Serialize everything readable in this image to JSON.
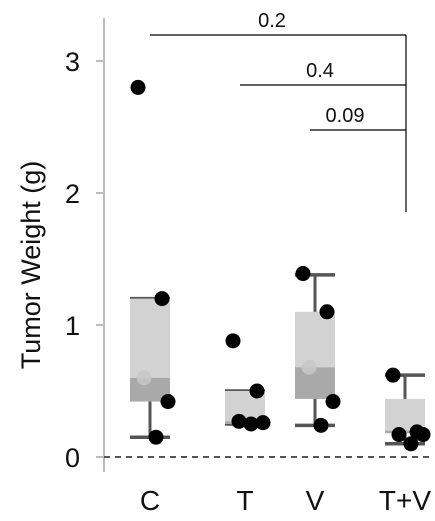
{
  "chart_data": {
    "type": "box",
    "ylabel": "Tumor Weight (g)",
    "xlabel": "",
    "title": "",
    "categories": [
      "C",
      "T",
      "V",
      "T+V"
    ],
    "ylim": [
      0,
      3.3
    ],
    "yticks": [
      0,
      1,
      2,
      3
    ],
    "ytick_labels": [
      "0",
      "1",
      "2",
      "3"
    ],
    "reference_line": {
      "y": 0,
      "style": "dashed"
    },
    "groups": [
      {
        "name": "C",
        "q1": 0.42,
        "median": 0.6,
        "q3": 1.2,
        "whisker_low": 0.15,
        "whisker_high": 1.2,
        "points": [
          2.8,
          1.2,
          0.6,
          0.42,
          0.15
        ]
      },
      {
        "name": "T",
        "q1": 0.25,
        "median": 0.27,
        "q3": 0.5,
        "whisker_low": 0.25,
        "whisker_high": 0.5,
        "points": [
          0.88,
          0.5,
          0.27,
          0.26,
          0.25
        ]
      },
      {
        "name": "V",
        "q1": 0.44,
        "median": 0.68,
        "q3": 1.1,
        "whisker_low": 0.24,
        "whisker_high": 1.38,
        "points": [
          1.39,
          1.1,
          0.68,
          0.42,
          0.24
        ]
      },
      {
        "name": "T+V",
        "q1": 0.18,
        "median": 0.2,
        "q3": 0.44,
        "whisker_low": 0.1,
        "whisker_high": 0.62,
        "points": [
          0.62,
          0.19,
          0.17,
          0.17,
          0.1
        ]
      }
    ],
    "comparisons": [
      {
        "from": "C",
        "to": "T+V",
        "label": "0.2"
      },
      {
        "from": "T",
        "to": "T+V",
        "label": "0.4"
      },
      {
        "from": "V",
        "to": "T+V",
        "label": "0.09"
      }
    ],
    "colors": {
      "box_upper": "#d2d2d2",
      "box_lower": "#a9a9a9",
      "whisker": "#555555",
      "point": "#000000",
      "axis": "#bdbdbd",
      "bracket": "#000000",
      "zero_line": "#555555"
    }
  }
}
